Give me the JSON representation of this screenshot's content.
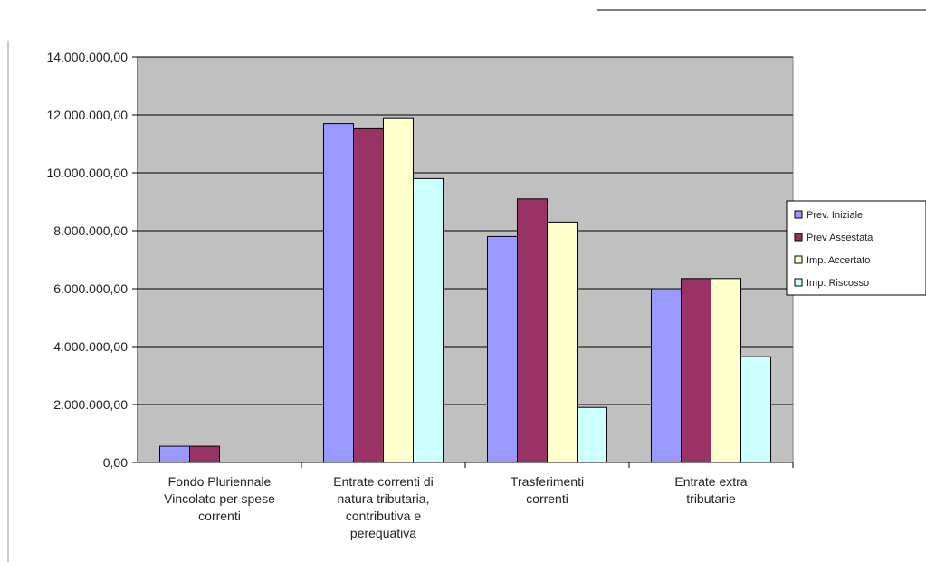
{
  "chart_data": {
    "type": "bar",
    "categories": [
      [
        "Fondo Pluriennale",
        "Vincolato per spese",
        "correnti"
      ],
      [
        "Entrate correnti di",
        "natura tributaria,",
        "contributiva e",
        "perequativa"
      ],
      [
        "Trasferimenti",
        "correnti"
      ],
      [
        "Entrate extra",
        "tributarie"
      ]
    ],
    "series": [
      {
        "name": "Prev. Iniziale",
        "values": [
          560000,
          11700000,
          7800000,
          6000000
        ]
      },
      {
        "name": "Prev Assestata",
        "values": [
          560000,
          11550000,
          9100000,
          6350000
        ]
      },
      {
        "name": "Imp. Accertato",
        "values": [
          0,
          11900000,
          8300000,
          6350000
        ]
      },
      {
        "name": "Imp. Riscosso",
        "values": [
          0,
          9800000,
          1900000,
          3650000
        ]
      }
    ],
    "y_ticks": [
      "0,00",
      "2.000.000,00",
      "4.000.000,00",
      "6.000.000,00",
      "8.000.000,00",
      "10.000.000,00",
      "12.000.000,00",
      "14.000.000,00"
    ],
    "ylim": [
      0,
      14000000
    ],
    "grid": true,
    "legend_position": "right",
    "colors": {
      "series": [
        "#9999ff",
        "#993366",
        "#ffffcc",
        "#ccffff"
      ],
      "plot_background": "#c0c0c0",
      "gridline": "#000000",
      "bar_edge": "#000000"
    }
  }
}
